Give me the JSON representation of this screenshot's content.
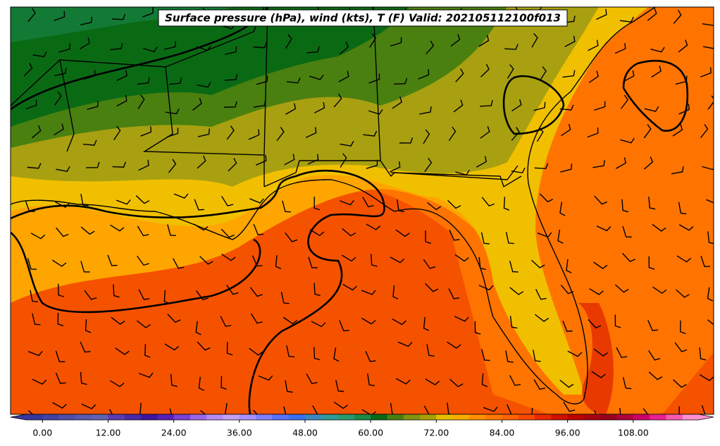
{
  "title": "Surface pressure (hPa), wind (kts), T (F) Valid: 202105112100f013",
  "colorbar": {
    "range": [
      -3,
      120
    ],
    "colors": [
      "#3636a0",
      "#4242a6",
      "#4e4eab",
      "#5a5ab0",
      "#6262b4",
      "#5a3cb0",
      "#4c28a8",
      "#3e14a0",
      "#5a1eb8",
      "#7a40d8",
      "#9a66e8",
      "#b48cf2",
      "#c4a0f6",
      "#a890ff",
      "#8080ff",
      "#5a70ff",
      "#3a70f0",
      "#3a88c0",
      "#2e9a9a",
      "#2a9a70",
      "#1e8a48",
      "#0a6a14",
      "#4a7f10",
      "#7f9410",
      "#a8a000",
      "#e8c000",
      "#f8ac00",
      "#ff9000",
      "#ff7800",
      "#ff6400",
      "#f84800",
      "#e82800",
      "#d01000",
      "#c00000",
      "#a80010",
      "#980020",
      "#b00040",
      "#d0006a",
      "#e82090",
      "#f858b0",
      "#ff90d0"
    ],
    "ticks": [
      {
        "value": 0,
        "label": "0.00"
      },
      {
        "value": 12,
        "label": "12.00"
      },
      {
        "value": 24,
        "label": "24.00"
      },
      {
        "value": 36,
        "label": "36.00"
      },
      {
        "value": 48,
        "label": "48.00"
      },
      {
        "value": 60,
        "label": "60.00"
      },
      {
        "value": 72,
        "label": "72.00"
      },
      {
        "value": 84,
        "label": "84.00"
      },
      {
        "value": 96,
        "label": "96.00"
      },
      {
        "value": 108,
        "label": "108.00"
      }
    ]
  }
}
